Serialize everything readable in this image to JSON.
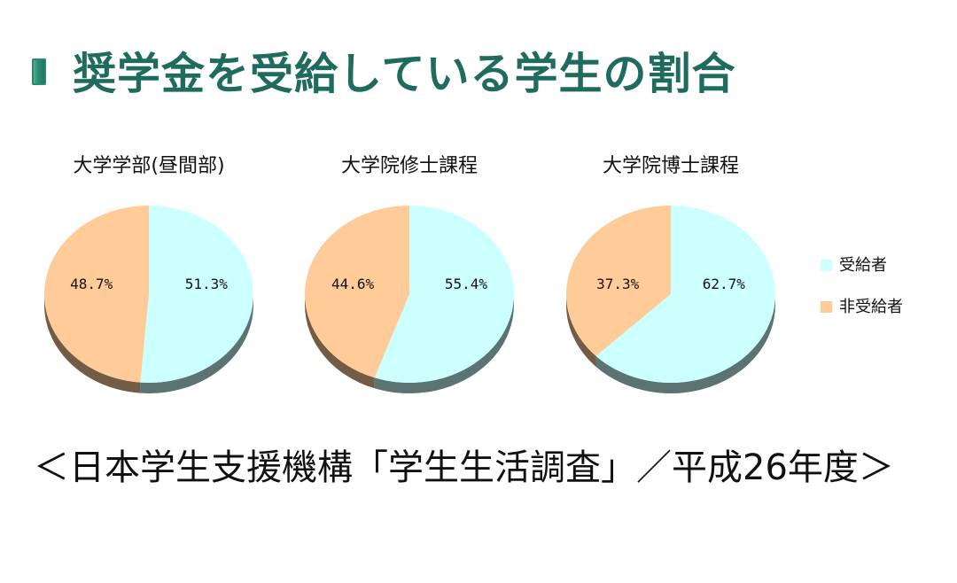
{
  "header": {
    "title": "奨学金を受給している学生の割合",
    "accent_color": "#1f6b5e"
  },
  "chart_data": [
    {
      "type": "pie",
      "title": "大学学部(昼間部)",
      "slices": [
        {
          "label": "受給者",
          "value": 51.3,
          "display": "51.3%"
        },
        {
          "label": "非受給者",
          "value": 48.7,
          "display": "48.7%"
        }
      ]
    },
    {
      "type": "pie",
      "title": "大学院修士課程",
      "slices": [
        {
          "label": "受給者",
          "value": 55.4,
          "display": "55.4%"
        },
        {
          "label": "非受給者",
          "value": 44.6,
          "display": "44.6%"
        }
      ]
    },
    {
      "type": "pie",
      "title": "大学院博士課程",
      "slices": [
        {
          "label": "受給者",
          "value": 62.7,
          "display": "62.7%"
        },
        {
          "label": "非受給者",
          "value": 37.3,
          "display": "37.3%"
        }
      ]
    }
  ],
  "legend": {
    "placement": "right",
    "items": [
      {
        "label": "受給者",
        "color": "#ccffff"
      },
      {
        "label": "非受給者",
        "color": "#ffcc99"
      }
    ]
  },
  "footer": {
    "source": "＜日本学生支援機構「学生生活調査」／平成26年度＞"
  }
}
